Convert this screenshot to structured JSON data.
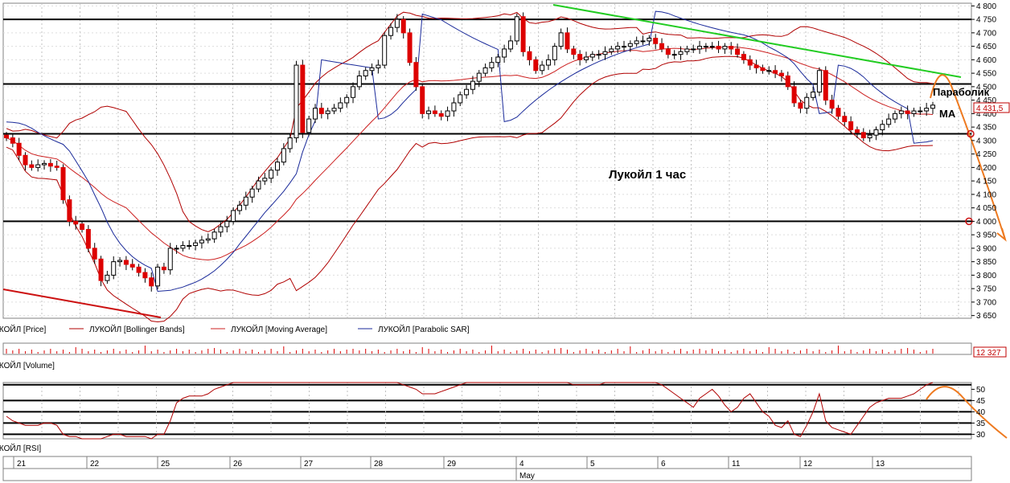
{
  "chart_data": [
    {
      "type": "candlestick",
      "title": "Лукойл   1 час",
      "y_ticks": [
        "4 800",
        "4 750",
        "4 700",
        "4 650",
        "4 600",
        "4 550",
        "4 500",
        "4 450",
        "4 400",
        "4 350",
        "4 300",
        "4 250",
        "4 200",
        "4 150",
        "4 100",
        "4 050",
        "4 000",
        "3 950",
        "3 900",
        "3 850",
        "3 800",
        "3 750",
        "3 700",
        "3 650"
      ],
      "ylim": [
        3640,
        4810
      ],
      "last_price_label": "4 431,5",
      "legend": [
        "ЛУКОЙЛ [Price]",
        "ЛУКОЙЛ [Bollinger Bands]",
        "ЛУКОЙЛ [Moving Average]",
        "ЛУКОЙЛ [Parabolic SAR]"
      ],
      "annotations": [
        "Параболик",
        "МА"
      ],
      "support_resistance_levels": [
        4750,
        4510,
        4325,
        4000
      ],
      "price": [
        4310,
        4290,
        4245,
        4210,
        4200,
        4210,
        4215,
        4205,
        4200,
        4080,
        4000,
        3990,
        3970,
        3900,
        3860,
        3780,
        3800,
        3850,
        3855,
        3840,
        3830,
        3810,
        3790,
        3760,
        3830,
        3820,
        3900,
        3900,
        3910,
        3910,
        3920,
        3930,
        3935,
        3960,
        3980,
        4000,
        4040,
        4060,
        4090,
        4120,
        4150,
        4160,
        4190,
        4220,
        4270,
        4310,
        4580,
        4330,
        4380,
        4420,
        4400,
        4410,
        4420,
        4440,
        4460,
        4500,
        4540,
        4560,
        4570,
        4580,
        4690,
        4720,
        4750,
        4700,
        4590,
        4500,
        4400,
        4410,
        4400,
        4390,
        4410,
        4440,
        4470,
        4490,
        4520,
        4550,
        4570,
        4590,
        4610,
        4640,
        4670,
        4760,
        4630,
        4600,
        4560,
        4580,
        4600,
        4650,
        4700,
        4640,
        4620,
        4600,
        4610,
        4620,
        4620,
        4630,
        4640,
        4650,
        4650,
        4660,
        4670,
        4670,
        4680,
        4660,
        4640,
        4620,
        4620,
        4630,
        4640,
        4640,
        4650,
        4650,
        4650,
        4640,
        4650,
        4640,
        4620,
        4600,
        4580,
        4570,
        4560,
        4560,
        4550,
        4540,
        4500,
        4440,
        4420,
        4460,
        4480,
        4560,
        4450,
        4420,
        4390,
        4370,
        4340,
        4330,
        4310,
        4320,
        4340,
        4360,
        4380,
        4400,
        4410,
        4400,
        4410,
        4410,
        4420,
        4431.5
      ]
    },
    {
      "type": "bar",
      "title": "ЛУКОЙЛ [Volume]",
      "last_value_label": "12 327"
    },
    {
      "type": "line",
      "title": "ЛУКОЙЛ [RSI]",
      "y_ticks": [
        "50",
        "45",
        "40",
        "35",
        "30"
      ],
      "ylim": [
        28,
        53
      ],
      "levels": [
        52,
        45,
        40,
        35,
        30
      ],
      "values": [
        38,
        36,
        35,
        34,
        34,
        34,
        35,
        35,
        34,
        30,
        29,
        29,
        28,
        28,
        28,
        28,
        29,
        30,
        30,
        29,
        29,
        29,
        29,
        28,
        30,
        30,
        36,
        44,
        46,
        47,
        47,
        47,
        48,
        50,
        51,
        52,
        53,
        53,
        53,
        53,
        53,
        53,
        53,
        53,
        53,
        53,
        53,
        53,
        53,
        53,
        53,
        53,
        53,
        53,
        53,
        53,
        53,
        53,
        53,
        53,
        53,
        53,
        53,
        52,
        51,
        50,
        48,
        48,
        48,
        49,
        50,
        51,
        52,
        53,
        53,
        53,
        53,
        53,
        53,
        53,
        53,
        53,
        53,
        53,
        53,
        53,
        53,
        53,
        53,
        53,
        52,
        52,
        52,
        52,
        52,
        53,
        53,
        53,
        53,
        53,
        53,
        53,
        53,
        53,
        52,
        50,
        48,
        46,
        44,
        42,
        46,
        48,
        50,
        47,
        43,
        40,
        42,
        46,
        48,
        44,
        40,
        38,
        34,
        33,
        36,
        30,
        29,
        34,
        40,
        48,
        36,
        33,
        32,
        31,
        30,
        34,
        38,
        42,
        44,
        45,
        46,
        46,
        46,
        47,
        48,
        50,
        52,
        53
      ]
    }
  ],
  "x_axis": {
    "day_labels": [
      "21",
      "22",
      "25",
      "26",
      "27",
      "28",
      "29",
      "4",
      "5",
      "6",
      "11",
      "12",
      "13"
    ],
    "month_label": "May"
  },
  "colors": {
    "candle_up": "#ffffff",
    "candle_down": "#dd0000",
    "bollinger": "#b00000",
    "moving_average": "#cc2020",
    "parabolic_sar": "#1a2a9a",
    "trend_green": "#22cc22",
    "trend_red": "#cc1111",
    "forecast_orange": "#ee7a20",
    "grid": "#c0c0c0",
    "level": "#000000"
  }
}
